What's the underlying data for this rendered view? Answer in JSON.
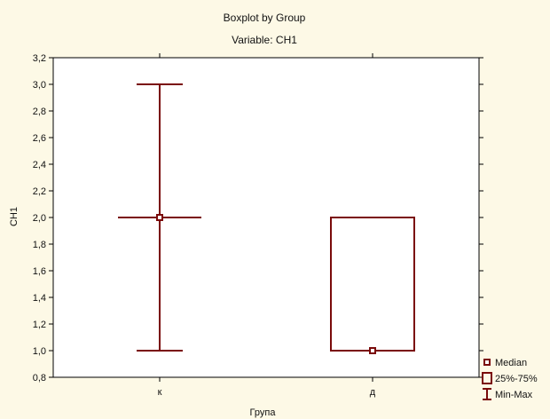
{
  "chart_data": {
    "type": "boxplot",
    "title": "Boxplot by Group",
    "subtitle": "Variable: CH1",
    "xlabel": "Група",
    "ylabel": "CH1",
    "ylim": [
      0.8,
      3.2
    ],
    "yticks": [
      "0,8",
      "1,0",
      "1,2",
      "1,4",
      "1,6",
      "1,8",
      "2,0",
      "2,2",
      "2,4",
      "2,6",
      "2,8",
      "3,0",
      "3,2"
    ],
    "categories": [
      "к",
      "д"
    ],
    "boxes": [
      {
        "category": "к",
        "min": 1.0,
        "q1": 2.0,
        "median": 2.0,
        "q3": 2.0,
        "max": 3.0
      },
      {
        "category": "д",
        "min": 1.0,
        "q1": 1.0,
        "median": 1.0,
        "q3": 2.0,
        "max": 2.0
      }
    ],
    "legend": {
      "position": "bottom-right",
      "items": [
        {
          "symbol": "median",
          "label": "Median"
        },
        {
          "symbol": "box",
          "label": "25%-75%"
        },
        {
          "symbol": "whisker",
          "label": "Min-Max"
        }
      ]
    },
    "grid": false,
    "colors": {
      "series": "#7a0a0a",
      "background": "#fdf9e6",
      "plot_background": "#ffffff"
    }
  }
}
